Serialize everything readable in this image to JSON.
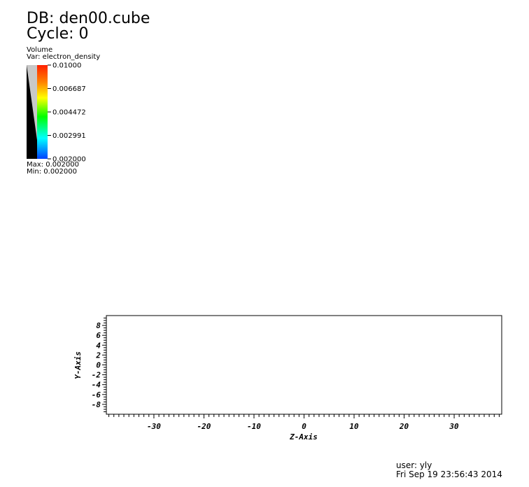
{
  "header": {
    "db_label": "DB: den00.cube",
    "cycle_label": "Cycle: 0"
  },
  "legend": {
    "plot_type": "Volume",
    "variable": "Var: electron_density",
    "ticks": [
      "0.01000",
      "0.006687",
      "0.004472",
      "0.002991",
      "0.002000"
    ],
    "max_label": "Max:  0.002000",
    "min_label": "Min:  0.002000",
    "colormap": [
      "#ff2000",
      "#ff8000",
      "#ffff00",
      "#00ff00",
      "#00ffff",
      "#0040ff"
    ]
  },
  "chart_data": {
    "type": "scatter",
    "series": [],
    "xlabel": "Z-Axis",
    "ylabel": "Y-Axis",
    "xlim": [
      -39.5,
      39.5
    ],
    "ylim": [
      -10,
      10
    ],
    "x_major_ticks": [
      -30,
      -20,
      -10,
      0,
      10,
      20,
      30
    ],
    "y_major_ticks": [
      8,
      6,
      4,
      2,
      0,
      -2,
      -4,
      -6,
      -8
    ],
    "x_minor_step": 1,
    "y_minor_step": 0.5,
    "grid": false
  },
  "footer": {
    "user": "user: yly",
    "datetime": "Fri Sep 19 23:56:43 2014"
  }
}
